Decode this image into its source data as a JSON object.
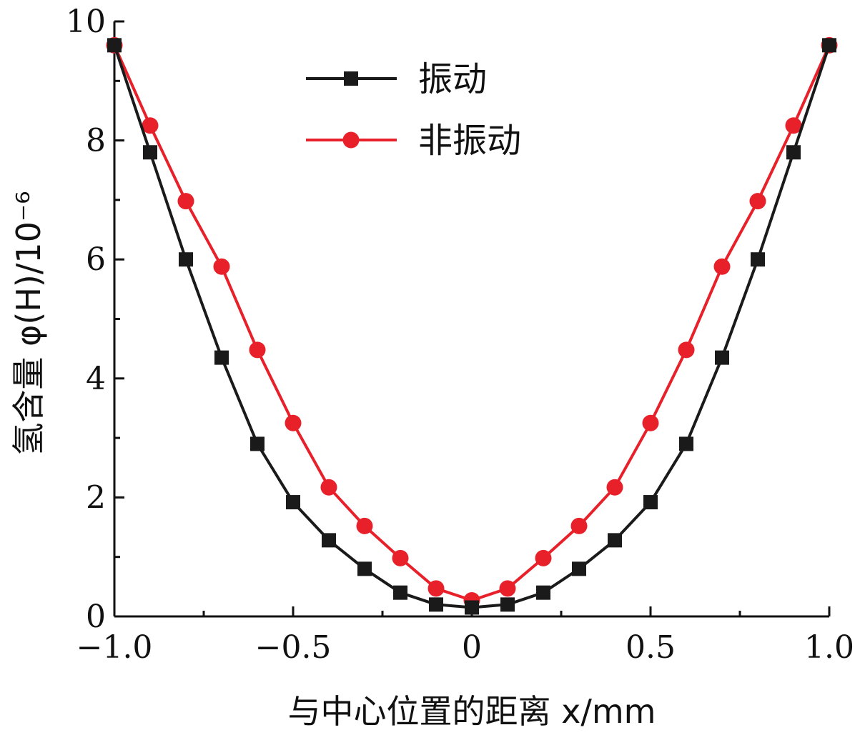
{
  "chart_data": {
    "type": "line",
    "xlabel": "与中心位置的距离 x/mm",
    "ylabel": "氢含量 φ(H)/10⁻⁶",
    "xlim": [
      -1.0,
      1.0
    ],
    "ylim": [
      0,
      10
    ],
    "x_ticks": [
      "−1.0",
      "−0.5",
      "0",
      "0.5",
      "1.0"
    ],
    "y_ticks": [
      "0",
      "2",
      "4",
      "6",
      "8",
      "10"
    ],
    "grid": false,
    "legend_position": "top-center",
    "x": [
      -1.0,
      -0.9,
      -0.8,
      -0.7,
      -0.6,
      -0.5,
      -0.4,
      -0.3,
      -0.2,
      -0.1,
      0.0,
      0.1,
      0.2,
      0.3,
      0.4,
      0.5,
      0.6,
      0.7,
      0.8,
      0.9,
      1.0
    ],
    "series": [
      {
        "name": "振动",
        "color": "#1a1a1a",
        "marker": "square",
        "values": [
          9.6,
          7.8,
          6.0,
          4.35,
          2.9,
          1.92,
          1.28,
          0.8,
          0.4,
          0.2,
          0.15,
          0.2,
          0.4,
          0.8,
          1.28,
          1.92,
          2.9,
          4.35,
          6.0,
          7.8,
          9.6
        ]
      },
      {
        "name": "非振动",
        "color": "#e8202a",
        "marker": "circle",
        "values": [
          9.6,
          8.25,
          6.98,
          5.88,
          4.48,
          3.25,
          2.17,
          1.52,
          0.98,
          0.47,
          0.27,
          0.47,
          0.98,
          1.52,
          2.17,
          3.25,
          4.48,
          5.88,
          6.98,
          8.25,
          9.6
        ]
      }
    ]
  }
}
